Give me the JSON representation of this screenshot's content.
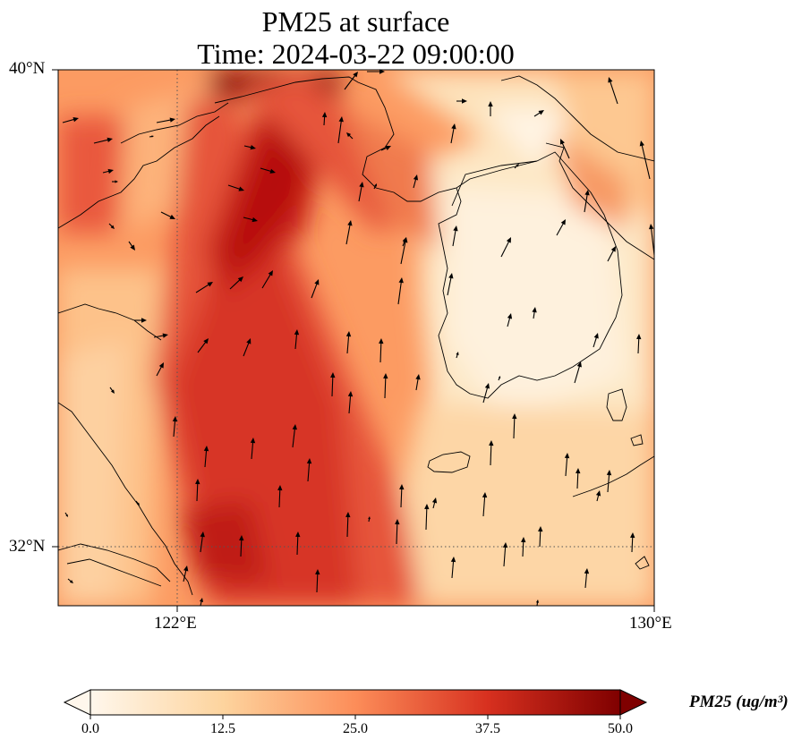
{
  "title": {
    "line1": "PM25 at surface",
    "line2": "Time: 2024-03-22 09:00:00"
  },
  "axes": {
    "lat_ticks": [
      "40°N",
      "32°N"
    ],
    "lon_ticks": [
      "122°E",
      "130°E"
    ],
    "extent": {
      "lon_min": 120,
      "lon_max": 130,
      "lat_min": 31,
      "lat_max": 40
    },
    "gridlines": "dotted at 122°E and 32°N"
  },
  "colorbar": {
    "label": "PM25 (ug/m³)",
    "ticks": [
      "0.0",
      "12.5",
      "25.0",
      "37.5",
      "50.0"
    ],
    "range": [
      0,
      50
    ],
    "colormap": "OrRd",
    "colors": [
      "#fff7ec",
      "#fdd49e",
      "#fc8d59",
      "#d7301f",
      "#7f0000"
    ]
  },
  "map": {
    "variable": "PM25",
    "overlay": "wind vectors",
    "basemap": "coastlines and borders"
  }
}
